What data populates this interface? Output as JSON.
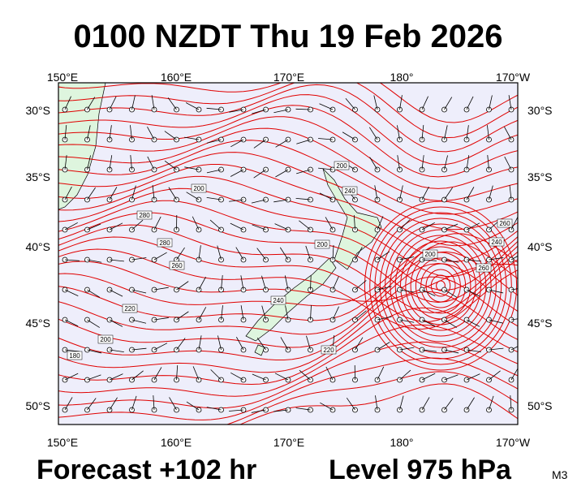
{
  "header": {
    "title": "0100 NZDT Thu 19 Feb 2026"
  },
  "map": {
    "top_labels": [
      "150°E",
      "160°E",
      "170°E",
      "180°",
      "170°W"
    ],
    "bottom_labels": [
      "150°E",
      "160°E",
      "170°E",
      "180°",
      "170°W"
    ],
    "left_labels": [
      "30°S",
      "35°S",
      "40°S",
      "45°S",
      "50°S"
    ],
    "right_labels": [
      "30°S",
      "35°S",
      "40°S",
      "45°S",
      "50°S"
    ],
    "contour_labels": [
      "200",
      "240",
      "200",
      "280",
      "280",
      "260",
      "200",
      "180",
      "220",
      "200",
      "240",
      "220",
      "240",
      "260",
      "200",
      "260"
    ]
  },
  "footer": {
    "forecast": "Forecast +102 hr",
    "level": "Level 975 hPa",
    "model": "M3"
  }
}
